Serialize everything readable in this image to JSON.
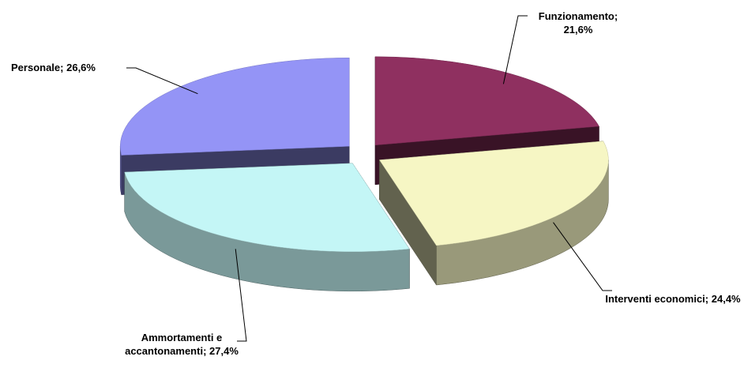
{
  "chart_data": {
    "type": "pie3d",
    "categories": [
      "Funzionamento;",
      "Interventi economici;",
      "Ammortamenti e accantonamenti;",
      "Personale;"
    ],
    "values": [
      21.6,
      24.4,
      27.4,
      26.6
    ],
    "value_labels": [
      "21,6%",
      "24,4%",
      "27,4%",
      "26,6%"
    ],
    "colors": [
      "#8f3060",
      "#f6f6c4",
      "#c4f6f6",
      "#9494f6"
    ]
  }
}
